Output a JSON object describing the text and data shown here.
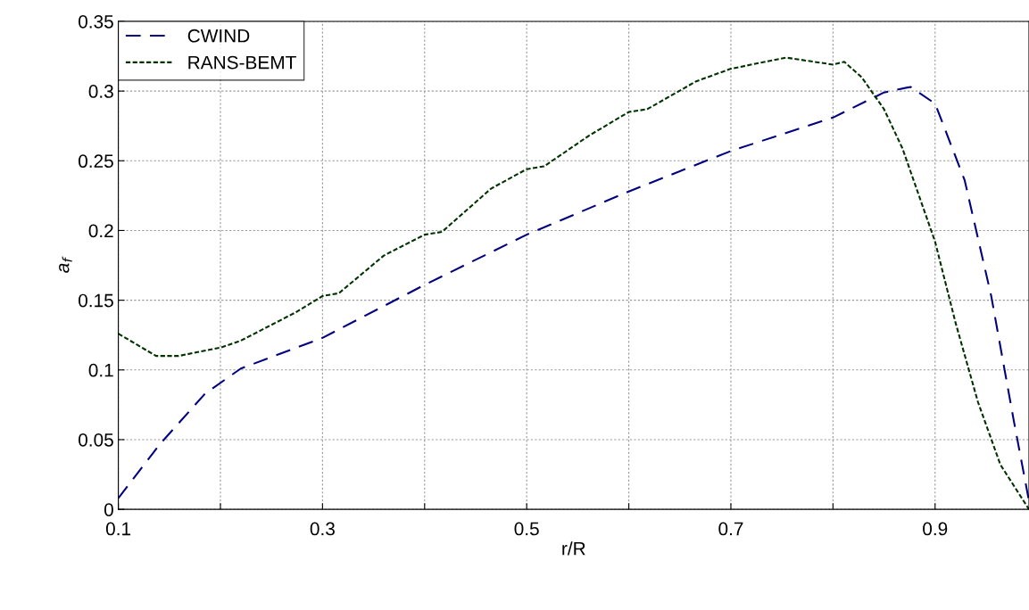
{
  "chart_data": {
    "type": "line",
    "xlabel": "r/R",
    "ylabel": "a$_{f}$",
    "xlim": [
      0.1,
      0.992
    ],
    "xticks": [
      0.1,
      {
        "value": 0.2,
        "label": null
      },
      0.3,
      {
        "value": 0.4,
        "label": null
      },
      0.5,
      {
        "value": 0.6,
        "label": null
      },
      0.7,
      {
        "value": 0.8,
        "label": null
      },
      0.9
    ],
    "ylim": [
      0,
      0.35
    ],
    "yticks": [
      0,
      0.05,
      0.1,
      0.15,
      0.2,
      0.25,
      0.3,
      0.35
    ],
    "grid": true,
    "legend": "top left",
    "marker": "none",
    "series": [
      {
        "name": "CWIND",
        "color": "#000080",
        "line_style": "dashed",
        "x": [
          0.1,
          0.141,
          0.185,
          0.22,
          0.3,
          0.4,
          0.5,
          0.6,
          0.7,
          0.8,
          0.85,
          0.876,
          0.9,
          0.929,
          0.955,
          0.977,
          0.992
        ],
        "values": [
          0.008,
          0.047,
          0.083,
          0.101,
          0.123,
          0.161,
          0.197,
          0.228,
          0.257,
          0.281,
          0.299,
          0.303,
          0.291,
          0.236,
          0.153,
          0.064,
          0.006
        ]
      },
      {
        "name": "RANS-BEMT",
        "color": "#003300",
        "line_style": "dotted",
        "x": [
          0.1,
          0.137,
          0.159,
          0.2,
          0.22,
          0.273,
          0.3,
          0.316,
          0.36,
          0.4,
          0.417,
          0.465,
          0.5,
          0.517,
          0.561,
          0.6,
          0.618,
          0.666,
          0.7,
          0.754,
          0.8,
          0.811,
          0.828,
          0.85,
          0.868,
          0.9,
          0.92,
          0.942,
          0.964,
          0.992
        ],
        "values": [
          0.126,
          0.11,
          0.11,
          0.116,
          0.121,
          0.141,
          0.153,
          0.155,
          0.182,
          0.197,
          0.199,
          0.23,
          0.244,
          0.246,
          0.268,
          0.285,
          0.287,
          0.307,
          0.316,
          0.324,
          0.319,
          0.321,
          0.31,
          0.287,
          0.259,
          0.192,
          0.134,
          0.077,
          0.032,
          0
        ]
      }
    ]
  }
}
